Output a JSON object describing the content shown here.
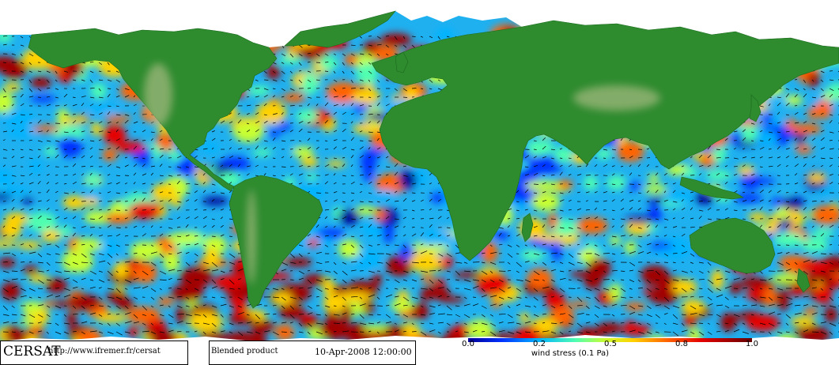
{
  "map": {
    "projection": "equirectangular world map",
    "land_color": "#2e8b2e",
    "ice_color": "#ffffff",
    "ocean_palette": [
      "#000096",
      "#0032ff",
      "#00b4ff",
      "#50ffb0",
      "#c8ff32",
      "#ffd200",
      "#ff6400",
      "#e60000",
      "#a00000"
    ]
  },
  "footer": {
    "logo": "CERSAT",
    "url": "http://www.ifremer.fr/cersat",
    "product": "Blended product",
    "date": "10-Apr-2008 12:00:00"
  },
  "colorbar": {
    "ticks": [
      "0.0",
      "0.2",
      "0.5",
      "0.8",
      "1.0"
    ],
    "label": "wind stress (0.1 Pa)",
    "min": 0.0,
    "max": 1.0
  }
}
